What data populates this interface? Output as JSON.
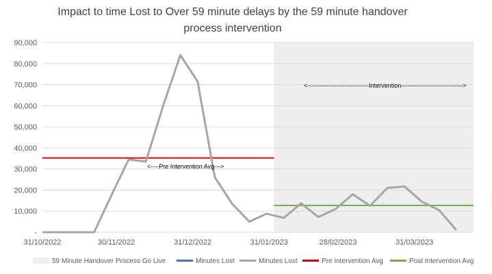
{
  "chart_data": {
    "type": "line",
    "title_lines": [
      "Impact to time Lost to Over 59 minute delays by the 59 minute handover",
      "process intervention"
    ],
    "y_axis": {
      "min": 0,
      "max": 90000,
      "step": 10000,
      "tick_labels": [
        "-",
        "10,000",
        "20,000",
        "30,000",
        "40,000",
        "50,000",
        "60,000",
        "70,000",
        "80,000",
        "90,000"
      ]
    },
    "x_axis": {
      "start": "2022-10-31",
      "end": "2023-04-24",
      "tick_labels": [
        {
          "date": "2022-10-31",
          "label": "31/10/2022"
        },
        {
          "date": "2022-11-30",
          "label": "30/11/2022"
        },
        {
          "date": "2022-12-31",
          "label": "31/12/2022"
        },
        {
          "date": "2023-01-31",
          "label": "31/01/2023"
        },
        {
          "date": "2023-02-28",
          "label": "28/02/2023"
        },
        {
          "date": "2023-03-31",
          "label": "31/03/2023"
        }
      ]
    },
    "grid": "horizontal",
    "legend_position": "bottom",
    "intervention_band": {
      "label": "59 Minute Handover Process Go Live",
      "start": "2023-02-02",
      "end": "2023-04-24",
      "color": "#eeeeee"
    },
    "series": [
      {
        "name": "Minutes Lost",
        "color": "#4472c4",
        "values": []
      },
      {
        "name": "Minutes Lost",
        "color": "#a5a5a5",
        "points": [
          [
            "2022-10-31",
            0
          ],
          [
            "2022-11-07",
            0
          ],
          [
            "2022-11-14",
            0
          ],
          [
            "2022-11-21",
            0
          ],
          [
            "2022-11-28",
            17500
          ],
          [
            "2022-12-05",
            34500
          ],
          [
            "2022-12-12",
            33500
          ],
          [
            "2022-12-19",
            60000
          ],
          [
            "2022-12-26",
            84000
          ],
          [
            "2023-01-02",
            71500
          ],
          [
            "2023-01-09",
            26000
          ],
          [
            "2023-01-16",
            13500
          ],
          [
            "2023-01-23",
            5000
          ],
          [
            "2023-01-30",
            8800
          ],
          [
            "2023-02-06",
            6800
          ],
          [
            "2023-02-13",
            13700
          ],
          [
            "2023-02-20",
            7200
          ],
          [
            "2023-02-27",
            11000
          ],
          [
            "2023-03-06",
            18000
          ],
          [
            "2023-03-13",
            12500
          ],
          [
            "2023-03-20",
            21000
          ],
          [
            "2023-03-27",
            21700
          ],
          [
            "2023-04-03",
            14500
          ],
          [
            "2023-04-10",
            10500
          ],
          [
            "2023-04-17",
            1000
          ]
        ]
      }
    ],
    "reference_lines": [
      {
        "name": "Pre Intervention Avg",
        "value": 35200,
        "start": "2022-10-31",
        "end": "2023-02-02",
        "color": "#e00000"
      },
      {
        "name": "Post Intervention Avg",
        "value": 12700,
        "start": "2023-02-02",
        "end": "2023-04-24",
        "color": "#70ad47"
      }
    ],
    "annotations": [
      {
        "text": "<----Pre Intervention Avg--->"
      },
      {
        "text": "<------------------------------Intervention------------------------------>"
      }
    ],
    "legend": [
      {
        "label": "59 Minute Handover Process Go Live",
        "kind": "band",
        "color": "#eeeeee"
      },
      {
        "label": "Minutes Lost",
        "kind": "line",
        "color": "#4472c4"
      },
      {
        "label": "Minutes Lost",
        "kind": "line",
        "color": "#a5a5a5"
      },
      {
        "label": "Pre Intervention Avg",
        "kind": "line",
        "color": "#e00000"
      },
      {
        "label": "Post Intervention Avg",
        "kind": "line",
        "color": "#70ad47"
      }
    ]
  }
}
